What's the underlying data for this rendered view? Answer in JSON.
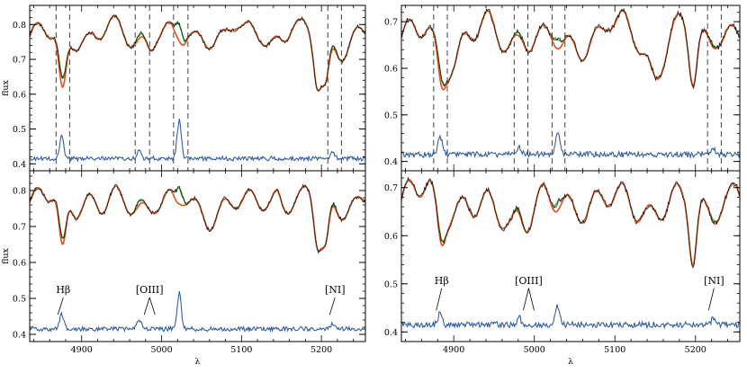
{
  "colors": {
    "observed": "#111111",
    "fit_stars": "#e0501e",
    "fit_total": "#2eab2e",
    "residual": "#2c5aa0",
    "line_markers": "#444444"
  },
  "chart_data": [
    {
      "type": "line",
      "panel": "top-left",
      "xlim": [
        4835,
        5255
      ],
      "ylim": [
        0.38,
        0.855
      ],
      "yticks": [
        "0.4",
        "0.5",
        "0.6",
        "0.7",
        "0.8"
      ],
      "xticks": [],
      "xlabel": "",
      "ylabel": "flux",
      "line_markers": [
        4868,
        4885,
        4967,
        4985,
        5015,
        5033,
        5208,
        5225
      ],
      "emission_peaks": [
        {
          "x": 4875,
          "h": 0.062
        },
        {
          "x": 4972,
          "h": 0.025
        },
        {
          "x": 5022,
          "h": 0.11
        },
        {
          "x": 5214,
          "h": 0.02
        }
      ],
      "absorption_dips": [
        {
          "x": 4876,
          "d": 0.17
        },
        {
          "x": 5195,
          "d": 0.13
        },
        {
          "x": 5205,
          "d": 0.12
        }
      ],
      "series": [
        {
          "name": "",
          "role": "observed"
        },
        {
          "name": "",
          "role": "fit_stars"
        },
        {
          "name": "",
          "role": "fit_total"
        },
        {
          "name": "",
          "role": "residual"
        }
      ]
    },
    {
      "type": "line",
      "panel": "top-right",
      "xlim": [
        4835,
        5255
      ],
      "ylim": [
        0.38,
        0.735
      ],
      "yticks": [
        "0.4",
        "0.5",
        "0.6",
        "0.7"
      ],
      "xticks": [],
      "xlabel": "",
      "ylabel": "",
      "line_markers": [
        4875,
        4892,
        4975,
        4992,
        5022,
        5038,
        5215,
        5232
      ],
      "emission_peaks": [
        {
          "x": 4883,
          "h": 0.04
        },
        {
          "x": 4981,
          "h": 0.015
        },
        {
          "x": 5029,
          "h": 0.045
        },
        {
          "x": 5222,
          "h": 0.012
        }
      ],
      "absorption_dips": [
        {
          "x": 4884,
          "d": 0.06
        },
        {
          "x": 5197,
          "d": 0.12
        }
      ],
      "series": [
        {
          "name": "",
          "role": "observed"
        },
        {
          "name": "",
          "role": "fit_stars"
        },
        {
          "name": "",
          "role": "fit_total"
        },
        {
          "name": "",
          "role": "residual"
        }
      ]
    },
    {
      "type": "line",
      "panel": "bottom-left",
      "xlim": [
        4835,
        5255
      ],
      "ylim": [
        0.38,
        0.855
      ],
      "yticks": [
        "0.4",
        "0.5",
        "0.6",
        "0.7",
        "0.8"
      ],
      "xticks": [
        "4900",
        "5000",
        "5100",
        "5200"
      ],
      "xlabel": "λ",
      "ylabel": "flux",
      "line_markers": [],
      "emission_peaks": [
        {
          "x": 4875,
          "h": 0.04
        },
        {
          "x": 4972,
          "h": 0.028
        },
        {
          "x": 5022,
          "h": 0.1
        },
        {
          "x": 5214,
          "h": 0.015
        }
      ],
      "absorption_dips": [
        {
          "x": 4876,
          "d": 0.16
        },
        {
          "x": 5195,
          "d": 0.13
        },
        {
          "x": 5205,
          "d": 0.13
        }
      ],
      "annotations": [
        {
          "text": "Hβ",
          "x": 4877,
          "y": 0.515,
          "arrow_to": [
            4877,
            0.455
          ]
        },
        {
          "text": "[OIII]",
          "x": 4985,
          "y": 0.515,
          "arrow_to": [
            4985,
            0.455
          ]
        },
        {
          "text": "[NI]",
          "x": 5217,
          "y": 0.515,
          "arrow_to": [
            5217,
            0.455
          ]
        }
      ],
      "series": [
        {
          "name": "",
          "role": "observed"
        },
        {
          "name": "",
          "role": "fit_stars"
        },
        {
          "name": "",
          "role": "fit_total"
        },
        {
          "name": "",
          "role": "residual"
        }
      ]
    },
    {
      "type": "line",
      "panel": "bottom-right",
      "xlim": [
        4835,
        5255
      ],
      "ylim": [
        0.38,
        0.735
      ],
      "yticks": [
        "0.4",
        "0.5",
        "0.6",
        "0.7"
      ],
      "xticks": [
        "4900",
        "5000",
        "5100",
        "5200"
      ],
      "xlabel": "λ",
      "ylabel": "",
      "line_markers": [],
      "emission_peaks": [
        {
          "x": 4883,
          "h": 0.025
        },
        {
          "x": 4981,
          "h": 0.015
        },
        {
          "x": 5029,
          "h": 0.04
        },
        {
          "x": 5222,
          "h": 0.012
        }
      ],
      "absorption_dips": [
        {
          "x": 4884,
          "d": 0.06
        },
        {
          "x": 5197,
          "d": 0.13
        }
      ],
      "annotations": [
        {
          "text": "Hβ",
          "x": 4885,
          "y": 0.5,
          "arrow_to": [
            4885,
            0.445
          ]
        },
        {
          "text": "[OIII]",
          "x": 4993,
          "y": 0.5,
          "arrow_to": [
            4993,
            0.445
          ]
        },
        {
          "text": "[NI]",
          "x": 5223,
          "y": 0.5,
          "arrow_to": [
            5223,
            0.445
          ]
        }
      ],
      "series": [
        {
          "name": "",
          "role": "observed"
        },
        {
          "name": "",
          "role": "fit_stars"
        },
        {
          "name": "",
          "role": "fit_total"
        },
        {
          "name": "",
          "role": "residual"
        }
      ]
    }
  ]
}
